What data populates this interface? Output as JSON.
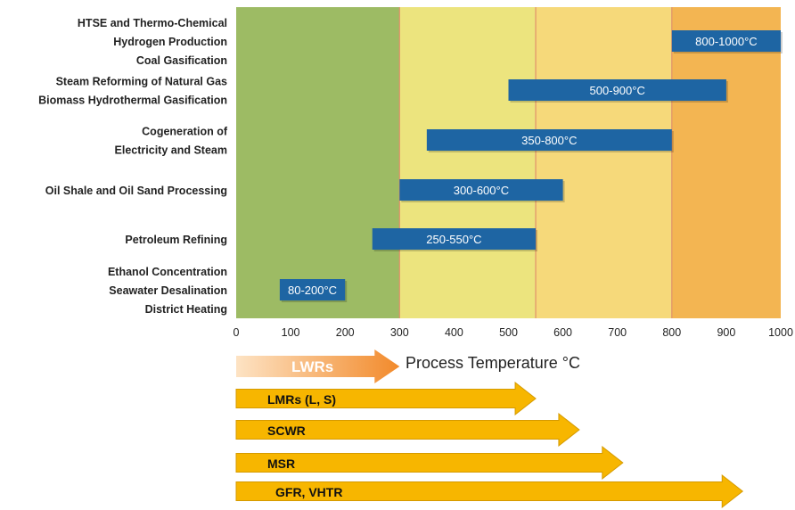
{
  "chart_data": {
    "type": "bar",
    "subtype": "floating-range",
    "xlabel": "Process Temperature °C",
    "xlim": [
      0,
      1000
    ],
    "xticks": [
      0,
      100,
      200,
      300,
      400,
      500,
      600,
      700,
      800,
      900,
      1000
    ],
    "zones": [
      {
        "from": 0,
        "to": 300,
        "color": "#9dbb64"
      },
      {
        "from": 300,
        "to": 550,
        "color": "#ece47e"
      },
      {
        "from": 550,
        "to": 800,
        "color": "#f6d97a"
      },
      {
        "from": 800,
        "to": 1000,
        "color": "#f3b552"
      }
    ],
    "categories": [
      {
        "lines": [
          "HTSE and Thermo-Chemical",
          "Hydrogen Production",
          "Coal Gasification"
        ],
        "start": 800,
        "end": 1000,
        "label": "800-1000°C"
      },
      {
        "lines": [
          "Steam Reforming of Natural Gas",
          "Biomass Hydrothermal Gasification"
        ],
        "start": 500,
        "end": 900,
        "label": "500-900°C"
      },
      {
        "lines": [
          "Cogeneration of",
          "Electricity and Steam"
        ],
        "start": 350,
        "end": 800,
        "label": "350-800°C"
      },
      {
        "lines": [
          "Oil Shale and Oil Sand Processing"
        ],
        "start": 300,
        "end": 600,
        "label": "300-600°C"
      },
      {
        "lines": [
          "Petroleum Refining"
        ],
        "start": 250,
        "end": 550,
        "label": "250-550°C"
      },
      {
        "lines": [
          "Ethanol Concentration",
          "Seawater Desalination",
          "District Heating"
        ],
        "start": 80,
        "end": 200,
        "label": "80-200°C"
      }
    ],
    "reactors": [
      {
        "name": "LWRs",
        "max": 300,
        "style": "gradient"
      },
      {
        "name": "LMRs (L, S)",
        "max": 550
      },
      {
        "name": "SCWR",
        "max": 630
      },
      {
        "name": "MSR",
        "max": 710
      },
      {
        "name": "GFR, VHTR",
        "max": 930
      }
    ],
    "colors": {
      "bar": "#1e65a3",
      "arrow": "#f7b600",
      "arrow_edge": "#d59a00",
      "lwr_start": "#fde3c4",
      "lwr_end": "#f28a2b"
    }
  }
}
